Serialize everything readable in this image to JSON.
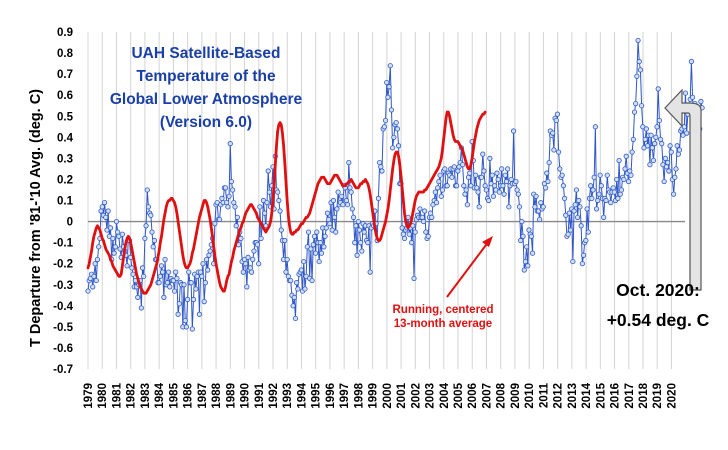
{
  "chart_data": {
    "type": "line",
    "title_lines": [
      "UAH Satellite-Based",
      "Temperature of the",
      "Global Lower Atmosphere",
      "(Version 6.0)"
    ],
    "ylabel": "T Departure from '81-'10 Avg. (deg. C)",
    "xlabel": "",
    "ylim": [
      -0.7,
      0.9
    ],
    "yticks": [
      "0.9",
      "0.8",
      "0.7",
      "0.6",
      "0.5",
      "0.4",
      "0.3",
      "0.2",
      "0.1",
      "0",
      "-0.1",
      "-0.2",
      "-0.3",
      "-0.4",
      "-0.5",
      "-0.6",
      "-0.7"
    ],
    "xlim": [
      1979.0,
      2020.95
    ],
    "xticks": [
      "1979",
      "1980",
      "1981",
      "1982",
      "1983",
      "1984",
      "1985",
      "1986",
      "1987",
      "1988",
      "1989",
      "1990",
      "1991",
      "1992",
      "1993",
      "1994",
      "1995",
      "1996",
      "1997",
      "1998",
      "1999",
      "2000",
      "2001",
      "2002",
      "2003",
      "2004",
      "2005",
      "2006",
      "2007",
      "2008",
      "2009",
      "2010",
      "2011",
      "2012",
      "2013",
      "2014",
      "2015",
      "2016",
      "2017",
      "2018",
      "2019",
      "2020"
    ],
    "grid": "vertical",
    "colors": {
      "monthly": "#2f57c9",
      "marker_fill": "#cfe0f2",
      "running": "#e01010",
      "zero_line": "#888888",
      "title": "#1a3fa6"
    },
    "series": [
      {
        "style": "monthly line with circle markers",
        "x_start": 1979.0,
        "x_step": 0.0833,
        "values": [
          -0.33,
          -0.28,
          -0.27,
          -0.25,
          -0.31,
          -0.26,
          -0.2,
          -0.28,
          -0.18,
          -0.12,
          -0.08,
          0.05,
          0.07,
          0.03,
          0.09,
          0.02,
          -0.04,
          0.05,
          -0.07,
          -0.03,
          -0.18,
          -0.08,
          -0.15,
          -0.12,
          0.0,
          -0.05,
          -0.07,
          -0.13,
          -0.17,
          -0.06,
          -0.12,
          -0.14,
          -0.16,
          -0.21,
          -0.08,
          -0.09,
          -0.17,
          -0.22,
          -0.25,
          -0.31,
          -0.28,
          -0.31,
          -0.36,
          -0.3,
          -0.28,
          -0.41,
          -0.22,
          -0.26,
          -0.08,
          -0.02,
          0.15,
          0.07,
          0.04,
          0.03,
          -0.05,
          -0.12,
          -0.09,
          -0.18,
          -0.18,
          -0.29,
          -0.29,
          -0.26,
          -0.21,
          -0.24,
          -0.36,
          -0.18,
          -0.3,
          -0.29,
          -0.24,
          -0.31,
          -0.27,
          -0.28,
          -0.28,
          -0.33,
          -0.24,
          -0.27,
          -0.44,
          -0.39,
          -0.29,
          -0.3,
          -0.5,
          -0.3,
          -0.47,
          -0.5,
          -0.37,
          -0.24,
          -0.29,
          -0.29,
          -0.51,
          -0.37,
          -0.25,
          -0.32,
          -0.26,
          -0.24,
          -0.44,
          -0.24,
          -0.26,
          -0.2,
          -0.38,
          -0.29,
          -0.18,
          -0.23,
          -0.16,
          -0.14,
          -0.11,
          -0.08,
          -0.2,
          -0.01,
          0.08,
          0.09,
          0.01,
          0.01,
          0.08,
          0.11,
          0.09,
          0.16,
          0.16,
          0.09,
          0.07,
          0.12,
          0.37,
          0.19,
          0.15,
          0.09,
          0.07,
          -0.02,
          0.02,
          -0.11,
          -0.05,
          -0.08,
          -0.19,
          -0.24,
          -0.18,
          -0.2,
          -0.31,
          -0.17,
          -0.23,
          -0.22,
          -0.24,
          -0.18,
          -0.14,
          -0.1,
          -0.1,
          -0.11,
          -0.2,
          0.07,
          -0.08,
          -0.02,
          0.1,
          0.04,
          -0.02,
          0.09,
          0.24,
          0.14,
          0.07,
          0.17,
          0.26,
          0.06,
          0.31,
          0.15,
          0.14,
          0.1,
          0.05,
          -0.04,
          -0.09,
          -0.18,
          -0.09,
          -0.24,
          -0.18,
          -0.26,
          -0.28,
          -0.28,
          -0.35,
          -0.4,
          -0.36,
          -0.46,
          -0.29,
          -0.32,
          -0.25,
          -0.24,
          -0.23,
          -0.33,
          -0.19,
          -0.32,
          -0.26,
          -0.12,
          -0.05,
          -0.27,
          -0.13,
          -0.28,
          -0.11,
          -0.07,
          -0.15,
          -0.05,
          -0.1,
          -0.19,
          -0.1,
          -0.15,
          -0.03,
          -0.12,
          -0.07,
          -0.03,
          0.04,
          0.01,
          -0.01,
          0.09,
          -0.04,
          0.1,
          0.02,
          -0.05,
          0.06,
          0.14,
          0.08,
          0.09,
          0.12,
          0.08,
          0.17,
          0.16,
          0.1,
          0.08,
          0.28,
          0.16,
          0.14,
          0.06,
          0.02,
          -0.1,
          -0.02,
          -0.16,
          0.0,
          -0.04,
          -0.1,
          -0.14,
          -0.01,
          -0.05,
          -0.02,
          -0.09,
          -0.1,
          -0.02,
          -0.24,
          -0.03,
          -0.01,
          -0.02,
          0.05,
          -0.01,
          -0.09,
          0.11,
          0.28,
          0.26,
          0.24,
          0.44,
          0.45,
          0.48,
          0.66,
          0.59,
          0.64,
          0.74,
          0.53,
          0.35,
          0.4,
          0.46,
          0.47,
          0.44,
          0.36,
          0.18,
          0.18,
          -0.03,
          -0.06,
          -0.08,
          -0.04,
          -0.03,
          0.02,
          -0.06,
          -0.03,
          -0.1,
          -0.02,
          -0.27,
          -0.05,
          0.01,
          0.03,
          0.02,
          0.06,
          0.02,
          0.02,
          0.0,
          0.05,
          -0.05,
          -0.08,
          -0.07,
          0.02,
          0.04,
          0.02,
          0.08,
          0.1,
          0.14,
          0.09,
          0.16,
          0.19,
          0.22,
          0.12,
          0.15,
          0.24,
          0.25,
          0.17,
          0.17,
          0.23,
          0.22,
          0.25,
          0.21,
          0.25,
          0.26,
          0.17,
          0.17,
          0.24,
          0.26,
          0.28,
          0.35,
          0.27,
          0.17,
          0.13,
          0.15,
          0.08,
          0.21,
          0.23,
          0.17,
          0.38,
          0.29,
          0.16,
          0.22,
          0.16,
          0.14,
          0.07,
          0.21,
          0.21,
          0.32,
          0.24,
          0.17,
          0.15,
          0.11,
          0.1,
          0.3,
          0.18,
          0.22,
          0.12,
          0.17,
          0.15,
          0.23,
          0.2,
          0.14,
          0.17,
          0.25,
          0.17,
          0.13,
          0.22,
          0.19,
          0.25,
          0.07,
          0.17,
          0.2,
          0.18,
          0.43,
          0.18,
          0.19,
          0.15,
          0.13,
          0.07,
          -0.09,
          0.0,
          -0.07,
          -0.23,
          -0.19,
          -0.12,
          -0.21,
          -0.04,
          -0.06,
          -0.07,
          -0.15,
          0.13,
          0.07,
          0.12,
          0.05,
          0.05,
          0.01,
          0.09,
          0.06,
          0.07,
          0.18,
          0.16,
          0.23,
          0.19,
          0.28,
          0.43,
          0.41,
          0.42,
          0.34,
          0.49,
          0.48,
          0.51,
          0.33,
          0.25,
          0.21,
          0.22,
          0.17,
          0.11,
          0.03,
          -0.07,
          -0.06,
          0.04,
          -0.04,
          0.06,
          -0.19,
          0.05,
          0.08,
          0.15,
          0.02,
          0.1,
          0.07,
          -0.02,
          -0.2,
          -0.16,
          -0.1,
          -0.09,
          0.06,
          -0.05,
          0.11,
          0.17,
          0.11,
          0.15,
          0.21,
          0.45,
          0.06,
          0.1,
          0.13,
          0.22,
          0.17,
          0.11,
          0.02,
          0.11,
          0.1,
          0.22,
          0.15,
          0.14,
          0.09,
          0.14,
          0.16,
          0.14,
          0.1,
          0.2,
          0.11,
          0.29,
          0.13,
          0.15,
          0.21,
          0.2,
          0.25,
          0.31,
          0.23,
          0.19,
          0.24,
          0.22,
          0.33,
          0.39,
          0.52,
          0.56,
          0.69,
          0.86,
          0.76,
          0.72,
          0.55,
          0.45,
          0.35,
          0.39,
          0.44,
          0.36,
          0.41,
          0.27,
          0.41,
          0.35,
          0.29,
          0.37,
          0.4,
          0.45,
          0.63,
          0.48,
          0.39,
          0.37,
          0.27,
          0.19,
          0.3,
          0.26,
          0.28,
          0.24,
          0.36,
          0.33,
          0.2,
          0.13,
          0.21,
          0.25,
          0.36,
          0.32,
          0.34,
          0.43,
          0.44,
          0.41,
          0.45,
          0.61,
          0.42,
          0.51,
          0.54,
          0.58,
          0.76,
          0.59,
          0.47,
          0.56,
          0.45,
          0.52,
          0.49,
          0.44,
          0.57,
          0.54
        ]
      },
      {
        "name": "Running, centered 13-month average",
        "style": "smoothed red line",
        "x_start": 1979.0,
        "x_step": 0.0833,
        "values": [
          -0.22,
          -0.2,
          -0.17,
          -0.14,
          -0.1,
          -0.07,
          -0.05,
          -0.03,
          -0.02,
          -0.03,
          -0.04,
          -0.06,
          -0.08,
          -0.09,
          -0.11,
          -0.13,
          -0.14,
          -0.15,
          -0.16,
          -0.18,
          -0.19,
          -0.21,
          -0.22,
          -0.23,
          -0.24,
          -0.25,
          -0.26,
          -0.26,
          -0.25,
          -0.21,
          -0.17,
          -0.13,
          -0.1,
          -0.08,
          -0.07,
          -0.08,
          -0.1,
          -0.13,
          -0.16,
          -0.19,
          -0.22,
          -0.25,
          -0.27,
          -0.29,
          -0.31,
          -0.32,
          -0.33,
          -0.34,
          -0.34,
          -0.34,
          -0.33,
          -0.32,
          -0.31,
          -0.3,
          -0.28,
          -0.26,
          -0.24,
          -0.22,
          -0.2,
          -0.17,
          -0.14,
          -0.1,
          -0.07,
          -0.03,
          0.01,
          0.04,
          0.07,
          0.09,
          0.1,
          0.1,
          0.11,
          0.11,
          0.1,
          0.09,
          0.07,
          0.04,
          0.0,
          -0.04,
          -0.08,
          -0.12,
          -0.16,
          -0.19,
          -0.21,
          -0.22,
          -0.22,
          -0.21,
          -0.2,
          -0.18,
          -0.15,
          -0.13,
          -0.1,
          -0.07,
          -0.04,
          -0.01,
          0.02,
          0.04,
          0.06,
          0.08,
          0.1,
          0.1,
          0.09,
          0.07,
          0.04,
          0.01,
          -0.03,
          -0.07,
          -0.12,
          -0.16,
          -0.2,
          -0.23,
          -0.26,
          -0.29,
          -0.31,
          -0.32,
          -0.33,
          -0.33,
          -0.31,
          -0.28,
          -0.26,
          -0.25,
          -0.22,
          -0.19,
          -0.17,
          -0.14,
          -0.12,
          -0.1,
          -0.08,
          -0.06,
          -0.04,
          -0.03,
          -0.01,
          0.0,
          0.02,
          0.04,
          0.05,
          0.06,
          0.07,
          0.08,
          0.08,
          0.07,
          0.06,
          0.05,
          0.04,
          0.02,
          0.01,
          0.0,
          -0.01,
          -0.02,
          -0.03,
          -0.04,
          -0.05,
          -0.04,
          -0.03,
          -0.02,
          0.0,
          0.04,
          0.1,
          0.18,
          0.27,
          0.36,
          0.43,
          0.46,
          0.47,
          0.46,
          0.42,
          0.36,
          0.28,
          0.19,
          0.1,
          0.03,
          -0.02,
          -0.05,
          -0.06,
          -0.06,
          -0.05,
          -0.05,
          -0.04,
          -0.04,
          -0.03,
          -0.02,
          -0.01,
          -0.01,
          0.0,
          0.01,
          0.02,
          0.02,
          0.03,
          0.04,
          0.06,
          0.08,
          0.1,
          0.12,
          0.14,
          0.16,
          0.18,
          0.19,
          0.2,
          0.21,
          0.21,
          0.21,
          0.2,
          0.19,
          0.18,
          0.18,
          0.18,
          0.19,
          0.2,
          0.21,
          0.22,
          0.22,
          0.22,
          0.21,
          0.2,
          0.19,
          0.18,
          0.17,
          0.17,
          0.17,
          0.18,
          0.18,
          0.19,
          0.19,
          0.2,
          0.19,
          0.18,
          0.17,
          0.16,
          0.16,
          0.16,
          0.17,
          0.18,
          0.18,
          0.19,
          0.19,
          0.2,
          0.19,
          0.18,
          0.16,
          0.13,
          0.09,
          0.05,
          0.01,
          -0.03,
          -0.06,
          -0.08,
          -0.09,
          -0.09,
          -0.08,
          -0.06,
          -0.04,
          -0.02,
          0.0,
          0.03,
          0.06,
          0.1,
          0.15,
          0.2,
          0.25,
          0.29,
          0.32,
          0.33,
          0.33,
          0.31,
          0.27,
          0.22,
          0.16,
          0.1,
          0.04,
          0.0,
          -0.02,
          -0.03,
          -0.02,
          -0.01,
          0.01,
          0.04,
          0.07,
          0.1,
          0.12,
          0.13,
          0.14,
          0.14,
          0.14,
          0.14,
          0.14,
          0.15,
          0.15,
          0.16,
          0.17,
          0.18,
          0.19,
          0.2,
          0.21,
          0.22,
          0.23,
          0.24,
          0.25,
          0.26,
          0.28,
          0.3,
          0.34,
          0.39,
          0.44,
          0.49,
          0.52,
          0.52,
          0.5,
          0.47,
          0.44,
          0.41,
          0.39,
          0.38,
          0.38,
          0.38,
          0.37,
          0.36,
          0.35,
          0.34,
          0.32,
          0.3,
          0.28,
          0.26,
          0.25,
          0.25,
          0.27,
          0.3,
          0.34,
          0.38,
          0.41,
          0.44,
          0.46,
          0.48,
          0.49,
          0.5,
          0.51,
          0.51,
          0.52
        ]
      }
    ],
    "annotations": [
      {
        "text_lines": [
          "Running, centered",
          "13-month average"
        ],
        "color": "#e01010"
      },
      {
        "text_lines": [
          "Oct. 2020:",
          "+0.54 deg. C"
        ],
        "color": "#000000"
      }
    ]
  }
}
